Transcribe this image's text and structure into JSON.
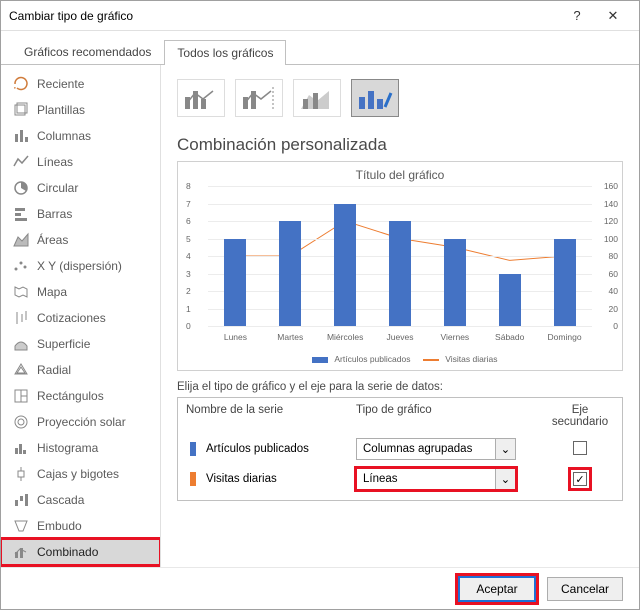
{
  "window": {
    "title": "Cambiar tipo de gráfico",
    "help": "?",
    "close": "✕"
  },
  "tabs": {
    "recommended": "Gráficos recomendados",
    "all": "Todos los gráficos"
  },
  "sidebar": {
    "items": [
      {
        "label": "Reciente",
        "icon": "recent"
      },
      {
        "label": "Plantillas",
        "icon": "templates"
      },
      {
        "label": "Columnas",
        "icon": "columns"
      },
      {
        "label": "Líneas",
        "icon": "lines"
      },
      {
        "label": "Circular",
        "icon": "pie"
      },
      {
        "label": "Barras",
        "icon": "bars"
      },
      {
        "label": "Áreas",
        "icon": "area"
      },
      {
        "label": "X Y (dispersión)",
        "icon": "scatter"
      },
      {
        "label": "Mapa",
        "icon": "map"
      },
      {
        "label": "Cotizaciones",
        "icon": "stock"
      },
      {
        "label": "Superficie",
        "icon": "surface"
      },
      {
        "label": "Radial",
        "icon": "radar"
      },
      {
        "label": "Rectángulos",
        "icon": "treemap"
      },
      {
        "label": "Proyección solar",
        "icon": "sunburst"
      },
      {
        "label": "Histograma",
        "icon": "histogram"
      },
      {
        "label": "Cajas y bigotes",
        "icon": "boxplot"
      },
      {
        "label": "Cascada",
        "icon": "waterfall"
      },
      {
        "label": "Embudo",
        "icon": "funnel"
      },
      {
        "label": "Combinado",
        "icon": "combo"
      }
    ],
    "selected_index": 18
  },
  "section_title": "Combinación personalizada",
  "chart": {
    "title": "Título del gráfico",
    "categories": [
      "Lunes",
      "Martes",
      "Miércoles",
      "Jueves",
      "Viernes",
      "Sábado",
      "Domingo"
    ],
    "bar_values": [
      5,
      6,
      7,
      6,
      5,
      3,
      5
    ],
    "line_values": [
      80,
      80,
      120,
      100,
      90,
      75,
      80
    ],
    "y_left": {
      "min": 0,
      "max": 8,
      "step": 1
    },
    "y_right": {
      "min": 0,
      "max": 160,
      "step": 20
    },
    "bar_color": "#4472c4",
    "line_color": "#ed7d31",
    "grid_color": "#ececec",
    "legend": {
      "s1": "Artículos publicados",
      "s2": "Visitas diarias"
    }
  },
  "picker": {
    "instruction": "Elija el tipo de gráfico y el eje para la serie de datos:",
    "head_name": "Nombre de la serie",
    "head_type": "Tipo de gráfico",
    "head_sec": "Eje secundario",
    "series": [
      {
        "name": "Artículos publicados",
        "color": "#4472c4",
        "type": "Columnas agrupadas",
        "secondary": false
      },
      {
        "name": "Visitas diarias",
        "color": "#ed7d31",
        "type": "Líneas",
        "secondary": true
      }
    ]
  },
  "footer": {
    "ok": "Aceptar",
    "cancel": "Cancelar"
  },
  "highlights": {
    "red_boxes": [
      "sidebar-item-combo",
      "dropdown-type-1",
      "checkbox-sec-1",
      "ok-button-wrap"
    ],
    "blue_boxes": [
      "ok-button"
    ]
  },
  "colors": {
    "accent_red": "#e81123",
    "accent_blue": "#1e6fd6"
  }
}
